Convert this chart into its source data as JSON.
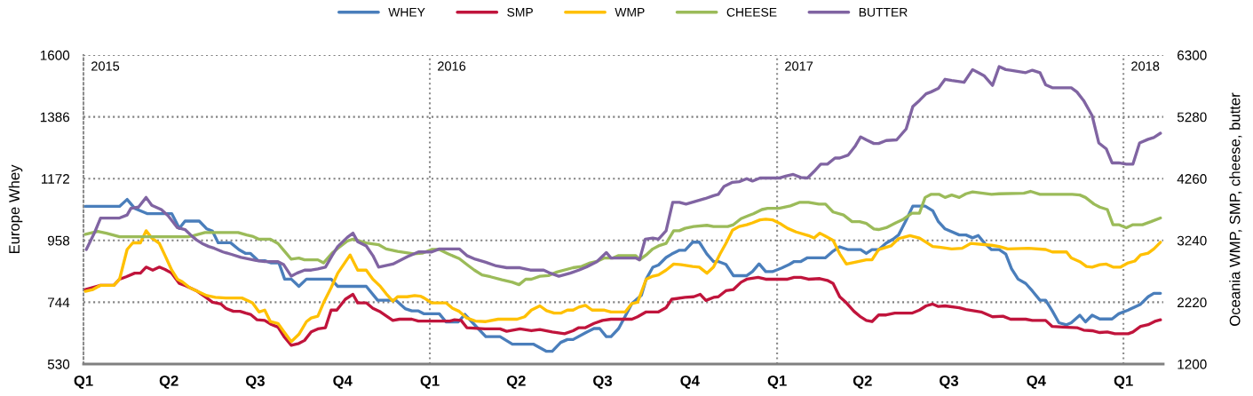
{
  "chart_data": {
    "type": "line",
    "xlim": [
      "2015-01-01",
      "2018-02-12"
    ],
    "xticks": [
      {
        "value": "2015-01-01",
        "label": "Q1"
      },
      {
        "value": "2015-04-01",
        "label": "Q2"
      },
      {
        "value": "2015-07-01",
        "label": "Q3"
      },
      {
        "value": "2015-10-01",
        "label": "Q4"
      },
      {
        "value": "2016-01-01",
        "label": "Q1"
      },
      {
        "value": "2016-04-01",
        "label": "Q2"
      },
      {
        "value": "2016-07-01",
        "label": "Q3"
      },
      {
        "value": "2016-10-01",
        "label": "Q4"
      },
      {
        "value": "2017-01-01",
        "label": "Q1"
      },
      {
        "value": "2017-04-01",
        "label": "Q2"
      },
      {
        "value": "2017-07-01",
        "label": "Q3"
      },
      {
        "value": "2017-10-01",
        "label": "Q4"
      },
      {
        "value": "2018-01-01",
        "label": "Q1"
      }
    ],
    "ylim": [
      530,
      1600
    ],
    "yticks": [
      530,
      744,
      958,
      1172,
      1386,
      1600
    ],
    "y2lim": [
      1200,
      6300
    ],
    "y2ticks": [
      1200,
      2220,
      3240,
      4260,
      5280,
      6300
    ],
    "ylabel": "Europe Whey",
    "y2label": "Oceania WMP, SMP, cheese, butter",
    "grid": "y",
    "legend": "top",
    "annotations": [
      "2015"
    ],
    "ref_lines": [
      {
        "axis": "x",
        "value": "2016-01-01",
        "label": "2016",
        "color": "#8c8c8c",
        "line_style": "dotted"
      },
      {
        "axis": "x",
        "value": "2017-01-01",
        "label": "2017",
        "color": "#8c8c8c",
        "line_style": "dotted"
      },
      {
        "axis": "x",
        "value": "2018-01-01",
        "label": "2018",
        "color": "#8c8c8c",
        "line_style": "dotted"
      }
    ],
    "series": [
      {
        "name": "WHEY",
        "color": "#4a7ebb",
        "x": [
          "2015-01-03",
          "2015-02-08",
          "2015-02-16",
          "2015-02-24",
          "2015-03-09",
          "2015-04-04",
          "2015-04-12",
          "2015-04-18",
          "2015-05-03",
          "2015-05-11",
          "2015-05-17",
          "2015-05-23",
          "2015-06-05",
          "2015-06-14",
          "2015-06-21",
          "2015-06-26",
          "2015-07-04",
          "2015-07-11",
          "2015-07-18",
          "2015-07-26",
          "2015-08-01",
          "2015-08-08",
          "2015-08-16",
          "2015-08-24",
          "2015-09-19",
          "2015-09-26",
          "2015-10-26",
          "2015-11-07",
          "2015-11-26",
          "2015-12-06",
          "2015-12-13",
          "2015-12-20",
          "2015-12-26",
          "2016-01-11",
          "2016-01-18",
          "2016-01-31",
          "2016-02-07",
          "2016-02-18",
          "2016-02-29",
          "2016-03-15",
          "2016-03-28",
          "2016-04-19",
          "2016-05-03",
          "2016-05-09",
          "2016-05-18",
          "2016-05-25",
          "2016-05-31",
          "2016-06-14",
          "2016-06-22",
          "2016-06-28",
          "2016-07-05",
          "2016-07-10",
          "2016-07-18",
          "2016-07-25",
          "2016-08-01",
          "2016-08-11",
          "2016-08-16",
          "2016-08-23",
          "2016-08-29",
          "2016-09-06",
          "2016-09-12",
          "2016-09-20",
          "2016-09-26",
          "2016-10-04",
          "2016-10-11",
          "2016-10-19",
          "2016-10-26",
          "2016-10-31",
          "2016-11-08",
          "2016-11-16",
          "2016-11-30",
          "2016-12-06",
          "2016-12-13",
          "2016-12-20",
          "2016-12-27",
          "2017-01-06",
          "2017-01-14",
          "2017-01-19",
          "2017-01-26",
          "2017-02-02",
          "2017-02-21",
          "2017-03-01",
          "2017-03-08",
          "2017-03-17",
          "2017-03-30",
          "2017-04-05",
          "2017-04-11",
          "2017-04-18",
          "2017-04-26",
          "2017-05-03",
          "2017-05-09",
          "2017-05-17",
          "2017-05-24",
          "2017-06-06",
          "2017-06-14",
          "2017-06-20",
          "2017-06-27",
          "2017-07-12",
          "2017-07-19",
          "2017-07-26",
          "2017-08-01",
          "2017-08-08",
          "2017-08-15",
          "2017-08-23",
          "2017-08-30",
          "2017-09-05",
          "2017-09-12",
          "2017-09-20",
          "2017-09-27",
          "2017-10-05",
          "2017-10-11",
          "2017-10-18",
          "2017-10-25",
          "2017-11-02",
          "2017-11-07",
          "2017-11-16",
          "2017-11-22",
          "2017-11-29",
          "2017-12-07",
          "2017-12-20",
          "2017-12-27",
          "2018-01-06",
          "2018-01-19",
          "2018-01-27",
          "2018-02-02",
          "2018-02-09"
        ],
        "values": [
          1076,
          1076,
          1100,
          1069,
          1051,
          1051,
          1000,
          1025,
          1025,
          998,
          990,
          950,
          950,
          926,
          913,
          913,
          888,
          888,
          880,
          880,
          824,
          824,
          799,
          824,
          824,
          799,
          799,
          751,
          751,
          722,
          714,
          714,
          704,
          704,
          676,
          676,
          702,
          663,
          625,
          625,
          599,
          599,
          574,
          574,
          605,
          615,
          615,
          640,
          653,
          653,
          625,
          625,
          653,
          696,
          740,
          768,
          824,
          865,
          873,
          899,
          911,
          924,
          924,
          952,
          952,
          911,
          885,
          885,
          875,
          836,
          836,
          850,
          877,
          850,
          850,
          863,
          875,
          885,
          885,
          898,
          898,
          921,
          936,
          926,
          926,
          913,
          926,
          926,
          949,
          962,
          977,
          1028,
          1077,
          1077,
          1061,
          1023,
          998,
          977,
          977,
          967,
          975,
          947,
          926,
          926,
          911,
          860,
          824,
          809,
          783,
          751,
          751,
          714,
          673,
          666,
          673,
          699,
          676,
          699,
          686,
          686,
          704,
          717,
          737,
          763,
          775,
          775
        ]
      },
      {
        "name": "SMP",
        "color": "#c0143c",
        "axis": "y2",
        "x": [
          "2015-01-03",
          "2015-01-19",
          "2015-02-02",
          "2015-02-08",
          "2015-02-15",
          "2015-02-24",
          "2015-03-02",
          "2015-03-08",
          "2015-03-15",
          "2015-03-22",
          "2015-03-28",
          "2015-04-04",
          "2015-04-12",
          "2015-04-19",
          "2015-04-30",
          "2015-05-11",
          "2015-05-17",
          "2015-05-26",
          "2015-05-31",
          "2015-06-08",
          "2015-06-15",
          "2015-06-21",
          "2015-06-26",
          "2015-07-03",
          "2015-07-11",
          "2015-07-17",
          "2015-07-25",
          "2015-08-01",
          "2015-08-08",
          "2015-08-16",
          "2015-08-22",
          "2015-08-29",
          "2015-09-05",
          "2015-09-13",
          "2015-09-19",
          "2015-09-25",
          "2015-10-04",
          "2015-10-12",
          "2015-10-17",
          "2015-10-26",
          "2015-11-02",
          "2015-11-10",
          "2015-11-23",
          "2015-11-30",
          "2015-12-13",
          "2015-12-20",
          "2016-01-22",
          "2016-01-27",
          "2016-02-03",
          "2016-02-09",
          "2016-02-28",
          "2016-03-15",
          "2016-03-22",
          "2016-04-05",
          "2016-04-17",
          "2016-04-26",
          "2016-05-09",
          "2016-05-22",
          "2016-05-31",
          "2016-06-06",
          "2016-06-13",
          "2016-06-22",
          "2016-07-01",
          "2016-07-10",
          "2016-08-01",
          "2016-08-07",
          "2016-08-16",
          "2016-08-29",
          "2016-09-06",
          "2016-09-12",
          "2016-09-26",
          "2016-10-05",
          "2016-10-12",
          "2016-10-18",
          "2016-10-26",
          "2016-10-31",
          "2016-11-08",
          "2016-11-16",
          "2016-11-24",
          "2016-11-30",
          "2016-12-12",
          "2016-12-20",
          "2017-01-12",
          "2017-01-19",
          "2017-01-26",
          "2017-02-03",
          "2017-02-15",
          "2017-02-23",
          "2017-03-01",
          "2017-03-08",
          "2017-03-15",
          "2017-03-23",
          "2017-03-29",
          "2017-04-05",
          "2017-04-11",
          "2017-04-18",
          "2017-04-26",
          "2017-05-05",
          "2017-05-23",
          "2017-05-31",
          "2017-06-07",
          "2017-06-14",
          "2017-06-20",
          "2017-06-27",
          "2017-07-12",
          "2017-07-19",
          "2017-08-04",
          "2017-08-16",
          "2017-08-27",
          "2017-09-04",
          "2017-09-20",
          "2017-09-27",
          "2017-10-11",
          "2017-10-18",
          "2017-10-29",
          "2017-11-13",
          "2017-11-20",
          "2017-11-29",
          "2017-12-07",
          "2017-12-15",
          "2017-12-23",
          "2018-01-06",
          "2018-01-11",
          "2018-01-19",
          "2018-01-27",
          "2018-02-04",
          "2018-02-09"
        ],
        "values": [
          2430,
          2500,
          2500,
          2600,
          2640,
          2700,
          2700,
          2800,
          2750,
          2800,
          2760,
          2700,
          2530,
          2490,
          2410,
          2290,
          2220,
          2190,
          2120,
          2070,
          2070,
          2040,
          2020,
          1930,
          1920,
          1860,
          1810,
          1640,
          1510,
          1540,
          1590,
          1730,
          1780,
          1800,
          2090,
          2090,
          2270,
          2350,
          2210,
          2210,
          2120,
          2060,
          1920,
          1940,
          1940,
          1910,
          1910,
          1930,
          1920,
          1800,
          1780,
          1780,
          1740,
          1780,
          1750,
          1770,
          1730,
          1700,
          1750,
          1800,
          1800,
          1870,
          1920,
          1940,
          1940,
          1980,
          2060,
          2060,
          2130,
          2270,
          2300,
          2310,
          2350,
          2250,
          2300,
          2310,
          2410,
          2430,
          2550,
          2600,
          2630,
          2600,
          2600,
          2630,
          2630,
          2600,
          2610,
          2580,
          2530,
          2310,
          2210,
          2070,
          1990,
          1920,
          1900,
          2010,
          2010,
          2040,
          2040,
          2090,
          2160,
          2190,
          2150,
          2160,
          2130,
          2100,
          2060,
          1980,
          1990,
          1940,
          1940,
          1920,
          1920,
          1820,
          1810,
          1800,
          1760,
          1750,
          1720,
          1730,
          1700,
          1700,
          1730,
          1820,
          1850,
          1910,
          1930
        ]
      },
      {
        "name": "WMP",
        "color": "#ffc000",
        "axis": "y2",
        "x": [
          "2015-01-03",
          "2015-01-11",
          "2015-01-19",
          "2015-02-02",
          "2015-02-08",
          "2015-02-16",
          "2015-02-22",
          "2015-03-02",
          "2015-03-08",
          "2015-03-14",
          "2015-03-22",
          "2015-03-28",
          "2015-04-04",
          "2015-04-10",
          "2015-04-15",
          "2015-04-23",
          "2015-05-04",
          "2015-05-11",
          "2015-05-20",
          "2015-05-31",
          "2015-06-17",
          "2015-06-24",
          "2015-06-28",
          "2015-07-05",
          "2015-07-11",
          "2015-07-17",
          "2015-07-25",
          "2015-07-31",
          "2015-08-08",
          "2015-08-16",
          "2015-08-24",
          "2015-08-29",
          "2015-09-05",
          "2015-09-11",
          "2015-09-19",
          "2015-09-26",
          "2015-10-09",
          "2015-10-17",
          "2015-10-26",
          "2015-11-02",
          "2015-11-10",
          "2015-11-16",
          "2015-11-23",
          "2015-11-28",
          "2015-12-08",
          "2015-12-16",
          "2015-12-22",
          "2015-12-26",
          "2016-01-03",
          "2016-01-18",
          "2016-01-25",
          "2016-02-01",
          "2016-02-09",
          "2016-02-18",
          "2016-02-29",
          "2016-03-13",
          "2016-04-02",
          "2016-04-10",
          "2016-04-17",
          "2016-04-26",
          "2016-05-03",
          "2016-05-11",
          "2016-05-18",
          "2016-05-25",
          "2016-05-31",
          "2016-06-06",
          "2016-06-13",
          "2016-06-20",
          "2016-07-03",
          "2016-07-10",
          "2016-07-25",
          "2016-08-01",
          "2016-08-07",
          "2016-08-16",
          "2016-08-23",
          "2016-08-29",
          "2016-09-06",
          "2016-09-14",
          "2016-09-22",
          "2016-10-04",
          "2016-10-11",
          "2016-10-19",
          "2016-10-26",
          "2016-11-02",
          "2016-11-08",
          "2016-11-15",
          "2016-11-22",
          "2016-11-30",
          "2016-12-06",
          "2016-12-14",
          "2016-12-20",
          "2016-12-27",
          "2017-01-04",
          "2017-01-12",
          "2017-01-21",
          "2017-02-03",
          "2017-02-09",
          "2017-02-15",
          "2017-02-21",
          "2017-03-01",
          "2017-03-08",
          "2017-03-15",
          "2017-03-24",
          "2017-04-05",
          "2017-04-11",
          "2017-04-18",
          "2017-05-01",
          "2017-05-09",
          "2017-05-21",
          "2017-05-31",
          "2017-06-06",
          "2017-06-14",
          "2017-06-21",
          "2017-07-04",
          "2017-07-15",
          "2017-07-24",
          "2017-08-15",
          "2017-08-23",
          "2017-09-01",
          "2017-09-23",
          "2017-10-11",
          "2017-10-18",
          "2017-11-02",
          "2017-11-07",
          "2017-11-16",
          "2017-11-23",
          "2017-11-29",
          "2017-12-07",
          "2017-12-14",
          "2017-12-21",
          "2017-12-29",
          "2018-01-06",
          "2018-01-13",
          "2018-01-19",
          "2018-01-27",
          "2018-02-02",
          "2018-02-09"
        ],
        "values": [
          2400,
          2430,
          2500,
          2500,
          2600,
          3090,
          3200,
          3200,
          3400,
          3280,
          3190,
          2990,
          2750,
          2600,
          2560,
          2460,
          2380,
          2330,
          2300,
          2290,
          2290,
          2240,
          2210,
          2060,
          2090,
          1900,
          1870,
          1740,
          1570,
          1690,
          1900,
          1960,
          1990,
          2210,
          2460,
          2700,
          3000,
          2750,
          2750,
          2600,
          2480,
          2360,
          2240,
          2310,
          2310,
          2330,
          2320,
          2290,
          2210,
          2210,
          2120,
          2070,
          1960,
          1910,
          1900,
          1940,
          1940,
          1980,
          2090,
          2160,
          2080,
          2040,
          2040,
          2090,
          2090,
          2140,
          2170,
          2090,
          2090,
          2060,
          2060,
          2200,
          2220,
          2600,
          2650,
          2670,
          2750,
          2850,
          2840,
          2810,
          2800,
          2700,
          2800,
          3020,
          3190,
          3410,
          3470,
          3500,
          3530,
          3580,
          3590,
          3580,
          3520,
          3440,
          3380,
          3320,
          3280,
          3360,
          3310,
          3240,
          3020,
          2850,
          2880,
          2920,
          2920,
          3090,
          3150,
          3270,
          3320,
          3280,
          3220,
          3140,
          3130,
          3100,
          3110,
          3190,
          3160,
          3140,
          3100,
          3110,
          3090,
          3050,
          3050,
          2950,
          2890,
          2810,
          2800,
          2840,
          2850,
          2800,
          2800,
          2870,
          2900,
          3000,
          3030,
          3100,
          3210
        ]
      },
      {
        "name": "CHEESE",
        "color": "#9bbb59",
        "axis": "y2",
        "x": [
          "2015-01-03",
          "2015-01-16",
          "2015-01-25",
          "2015-02-08",
          "2015-04-21",
          "2015-04-27",
          "2015-05-09",
          "2015-06-13",
          "2015-06-22",
          "2015-06-28",
          "2015-07-05",
          "2015-07-17",
          "2015-07-25",
          "2015-08-01",
          "2015-08-08",
          "2015-08-16",
          "2015-08-22",
          "2015-09-05",
          "2015-09-11",
          "2015-09-20",
          "2015-09-26",
          "2015-10-06",
          "2015-10-12",
          "2015-10-26",
          "2015-11-08",
          "2015-11-16",
          "2015-11-28",
          "2015-12-15",
          "2015-12-24",
          "2016-01-03",
          "2016-01-11",
          "2016-01-20",
          "2016-02-01",
          "2016-02-11",
          "2016-02-17",
          "2016-02-25",
          "2016-03-05",
          "2016-03-17",
          "2016-03-28",
          "2016-04-04",
          "2016-04-11",
          "2016-04-17",
          "2016-04-26",
          "2016-05-05",
          "2016-05-14",
          "2016-05-31",
          "2016-06-09",
          "2016-06-18",
          "2016-06-26",
          "2016-07-03",
          "2016-07-12",
          "2016-07-18",
          "2016-08-05",
          "2016-08-09",
          "2016-08-16",
          "2016-08-23",
          "2016-08-29",
          "2016-09-06",
          "2016-09-14",
          "2016-09-20",
          "2016-09-26",
          "2016-10-05",
          "2016-10-19",
          "2016-10-26",
          "2016-11-10",
          "2016-11-16",
          "2016-11-24",
          "2016-12-02",
          "2016-12-07",
          "2016-12-16",
          "2016-12-22",
          "2017-01-03",
          "2017-01-15",
          "2017-01-25",
          "2017-02-03",
          "2017-02-14",
          "2017-02-21",
          "2017-03-01",
          "2017-03-12",
          "2017-03-21",
          "2017-03-29",
          "2017-04-05",
          "2017-04-13",
          "2017-04-18",
          "2017-04-26",
          "2017-05-06",
          "2017-05-14",
          "2017-05-23",
          "2017-05-31",
          "2017-06-06",
          "2017-06-12",
          "2017-06-21",
          "2017-06-27",
          "2017-07-04",
          "2017-07-12",
          "2017-07-19",
          "2017-07-26",
          "2017-08-15",
          "2017-08-23",
          "2017-09-18",
          "2017-09-25",
          "2017-10-05",
          "2017-11-08",
          "2017-11-16",
          "2017-11-22",
          "2017-12-01",
          "2017-12-07",
          "2017-12-15",
          "2017-12-21",
          "2017-12-27",
          "2018-01-04",
          "2018-01-11",
          "2018-01-21",
          "2018-01-30",
          "2018-02-09"
        ],
        "values": [
          3340,
          3390,
          3360,
          3300,
          3300,
          3320,
          3370,
          3370,
          3330,
          3310,
          3260,
          3260,
          3190,
          3060,
          2930,
          2950,
          2920,
          2920,
          2870,
          3030,
          3110,
          3230,
          3260,
          3200,
          3170,
          3100,
          3060,
          3020,
          3030,
          3090,
          3090,
          3020,
          2940,
          2820,
          2750,
          2670,
          2640,
          2590,
          2550,
          2510,
          2600,
          2600,
          2650,
          2660,
          2720,
          2790,
          2810,
          2870,
          2900,
          2950,
          2950,
          2990,
          2990,
          2920,
          3000,
          3100,
          3150,
          3190,
          3400,
          3400,
          3440,
          3470,
          3490,
          3470,
          3470,
          3500,
          3600,
          3650,
          3680,
          3750,
          3770,
          3770,
          3810,
          3870,
          3870,
          3840,
          3840,
          3710,
          3660,
          3550,
          3550,
          3520,
          3430,
          3420,
          3450,
          3530,
          3590,
          3690,
          3690,
          3950,
          4000,
          4000,
          3950,
          3990,
          3950,
          4010,
          4040,
          4000,
          4010,
          4020,
          4050,
          4000,
          4000,
          3990,
          3950,
          3840,
          3790,
          3750,
          3500,
          3500,
          3450,
          3500,
          3500,
          3550,
          3610
        ]
      },
      {
        "name": "BUTTER",
        "color": "#8064a2",
        "axis": "y2",
        "x": [
          "2015-01-04",
          "2015-01-13",
          "2015-01-19",
          "2015-02-08",
          "2015-02-16",
          "2015-02-20",
          "2015-02-28",
          "2015-03-08",
          "2015-03-14",
          "2015-03-24",
          "2015-03-31",
          "2015-04-06",
          "2015-04-10",
          "2015-04-18",
          "2015-04-24",
          "2015-04-30",
          "2015-05-06",
          "2015-05-13",
          "2015-05-19",
          "2015-05-28",
          "2015-06-06",
          "2015-06-16",
          "2015-07-02",
          "2015-07-11",
          "2015-07-25",
          "2015-07-31",
          "2015-08-08",
          "2015-08-14",
          "2015-08-22",
          "2015-08-29",
          "2015-09-05",
          "2015-09-13",
          "2015-09-20",
          "2015-09-26",
          "2015-10-06",
          "2015-10-12",
          "2015-10-17",
          "2015-10-26",
          "2015-11-02",
          "2015-11-08",
          "2015-11-23",
          "2015-12-08",
          "2015-12-20",
          "2016-01-03",
          "2016-01-11",
          "2016-02-01",
          "2016-02-09",
          "2016-02-18",
          "2016-02-29",
          "2016-03-11",
          "2016-03-22",
          "2016-04-05",
          "2016-04-16",
          "2016-04-30",
          "2016-05-07",
          "2016-05-16",
          "2016-05-28",
          "2016-06-06",
          "2016-06-14",
          "2016-06-25",
          "2016-07-05",
          "2016-07-10",
          "2016-08-05",
          "2016-08-09",
          "2016-08-15",
          "2016-08-23",
          "2016-08-29",
          "2016-09-06",
          "2016-09-13",
          "2016-09-20",
          "2016-09-27",
          "2016-10-17",
          "2016-10-26",
          "2016-10-31",
          "2016-11-06",
          "2016-11-15",
          "2016-11-22",
          "2016-11-30",
          "2016-12-06",
          "2016-12-14",
          "2017-01-03",
          "2017-01-10",
          "2017-01-18",
          "2017-01-26",
          "2017-02-02",
          "2017-02-09",
          "2017-02-16",
          "2017-02-23",
          "2017-03-03",
          "2017-03-08",
          "2017-03-17",
          "2017-03-24",
          "2017-03-30",
          "2017-04-05",
          "2017-04-13",
          "2017-04-18",
          "2017-04-26",
          "2017-05-07",
          "2017-05-17",
          "2017-05-24",
          "2017-05-31",
          "2017-06-07",
          "2017-06-12",
          "2017-06-20",
          "2017-06-27",
          "2017-07-04",
          "2017-07-17",
          "2017-07-26",
          "2017-08-01",
          "2017-08-07",
          "2017-08-16",
          "2017-08-23",
          "2017-08-30",
          "2017-09-04",
          "2017-09-20",
          "2017-09-27",
          "2017-10-05",
          "2017-10-11",
          "2017-10-18",
          "2017-11-07",
          "2017-11-13",
          "2017-11-20",
          "2017-11-29",
          "2017-12-06",
          "2017-12-14",
          "2017-12-20",
          "2017-12-27",
          "2018-01-04",
          "2018-01-11",
          "2018-01-18",
          "2018-01-27",
          "2018-02-02",
          "2018-02-09"
        ],
        "values": [
          3090,
          3380,
          3610,
          3610,
          3660,
          3770,
          3790,
          3950,
          3820,
          3750,
          3650,
          3530,
          3450,
          3420,
          3330,
          3250,
          3190,
          3140,
          3110,
          3050,
          3010,
          2960,
          2910,
          2890,
          2890,
          2840,
          2650,
          2700,
          2750,
          2750,
          2770,
          2800,
          2990,
          3140,
          3290,
          3360,
          3220,
          3150,
          2990,
          2800,
          2850,
          2970,
          3050,
          3050,
          3100,
          3100,
          2990,
          2930,
          2880,
          2820,
          2790,
          2790,
          2750,
          2750,
          2700,
          2650,
          2700,
          2750,
          2800,
          2890,
          3040,
          2950,
          2950,
          2920,
          3260,
          3280,
          3260,
          3400,
          3870,
          3870,
          3840,
          3930,
          3980,
          4000,
          4130,
          4200,
          4210,
          4260,
          4220,
          4270,
          4270,
          4300,
          4330,
          4280,
          4270,
          4380,
          4500,
          4500,
          4600,
          4600,
          4650,
          4790,
          4950,
          4900,
          4840,
          4840,
          4890,
          4900,
          5080,
          5450,
          5550,
          5660,
          5690,
          5750,
          5900,
          5880,
          5850,
          6060,
          6010,
          5960,
          5800,
          6110,
          6060,
          6050,
          6010,
          6050,
          6010,
          5810,
          5760,
          5760,
          5690,
          5550,
          5300,
          4850,
          4750,
          4520,
          4520,
          4500,
          4500,
          4850,
          4910,
          4940,
          5010
        ]
      }
    ]
  }
}
